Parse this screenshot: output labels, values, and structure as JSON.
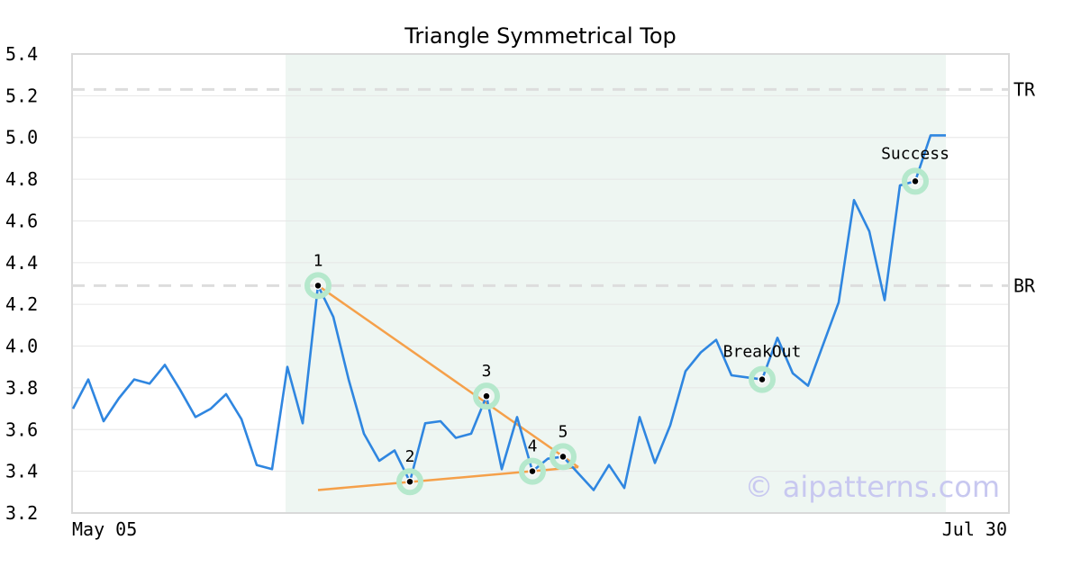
{
  "chart_data": {
    "type": "line",
    "title": "Triangle Symmetrical Top",
    "xlabel": "",
    "ylabel": "",
    "ylim": [
      3.2,
      5.4
    ],
    "yticks": [
      "5.4",
      "5.2",
      "5.0",
      "4.8",
      "4.6",
      "4.4",
      "4.2",
      "4.0",
      "3.8",
      "3.6",
      "3.4",
      "3.2"
    ],
    "xtick_labels": {
      "start": "May 05",
      "end": "Jul 30"
    },
    "grid": true,
    "series": [
      {
        "values": [
          3.7,
          3.84,
          3.64,
          3.75,
          3.84,
          3.82,
          3.91,
          3.79,
          3.66,
          3.7,
          3.77,
          3.65,
          3.43,
          3.41,
          3.9,
          3.63,
          4.29,
          4.14,
          3.84,
          3.58,
          3.45,
          3.5,
          3.35,
          3.63,
          3.64,
          3.56,
          3.58,
          3.76,
          3.41,
          3.66,
          3.4,
          3.46,
          3.47,
          3.39,
          3.31,
          3.43,
          3.32,
          3.66,
          3.44,
          3.62,
          3.88,
          3.97,
          4.03,
          3.86,
          3.85,
          3.84,
          4.04,
          3.87,
          3.81,
          4.01,
          4.21,
          4.7,
          4.55,
          4.22,
          4.77,
          4.79,
          5.01,
          5.01
        ],
        "color": "#2f86e0"
      }
    ],
    "highlight_region": {
      "start_index": 14,
      "end_index": 57,
      "color": "#eef6f2"
    },
    "reference_lines": [
      {
        "label": "TR",
        "value": 5.23
      },
      {
        "label": "BR",
        "value": 4.29
      }
    ],
    "trend_lines": [
      {
        "from": [
          16,
          4.29
        ],
        "to": [
          33,
          3.42
        ],
        "color": "#f5a04a"
      },
      {
        "from": [
          16,
          3.31
        ],
        "to": [
          33,
          3.42
        ],
        "color": "#f5a04a"
      }
    ],
    "pattern_points": [
      {
        "label": "1",
        "index": 16,
        "value": 4.29
      },
      {
        "label": "2",
        "index": 22,
        "value": 3.35
      },
      {
        "label": "3",
        "index": 27,
        "value": 3.76
      },
      {
        "label": "4",
        "index": 30,
        "value": 3.4
      },
      {
        "label": "5",
        "index": 32,
        "value": 3.47
      }
    ],
    "annotations": [
      {
        "label": "BreakOut",
        "index": 45,
        "value": 3.84
      },
      {
        "label": "Success",
        "index": 55,
        "value": 4.79
      }
    ],
    "watermark": "© aipatterns.com"
  }
}
